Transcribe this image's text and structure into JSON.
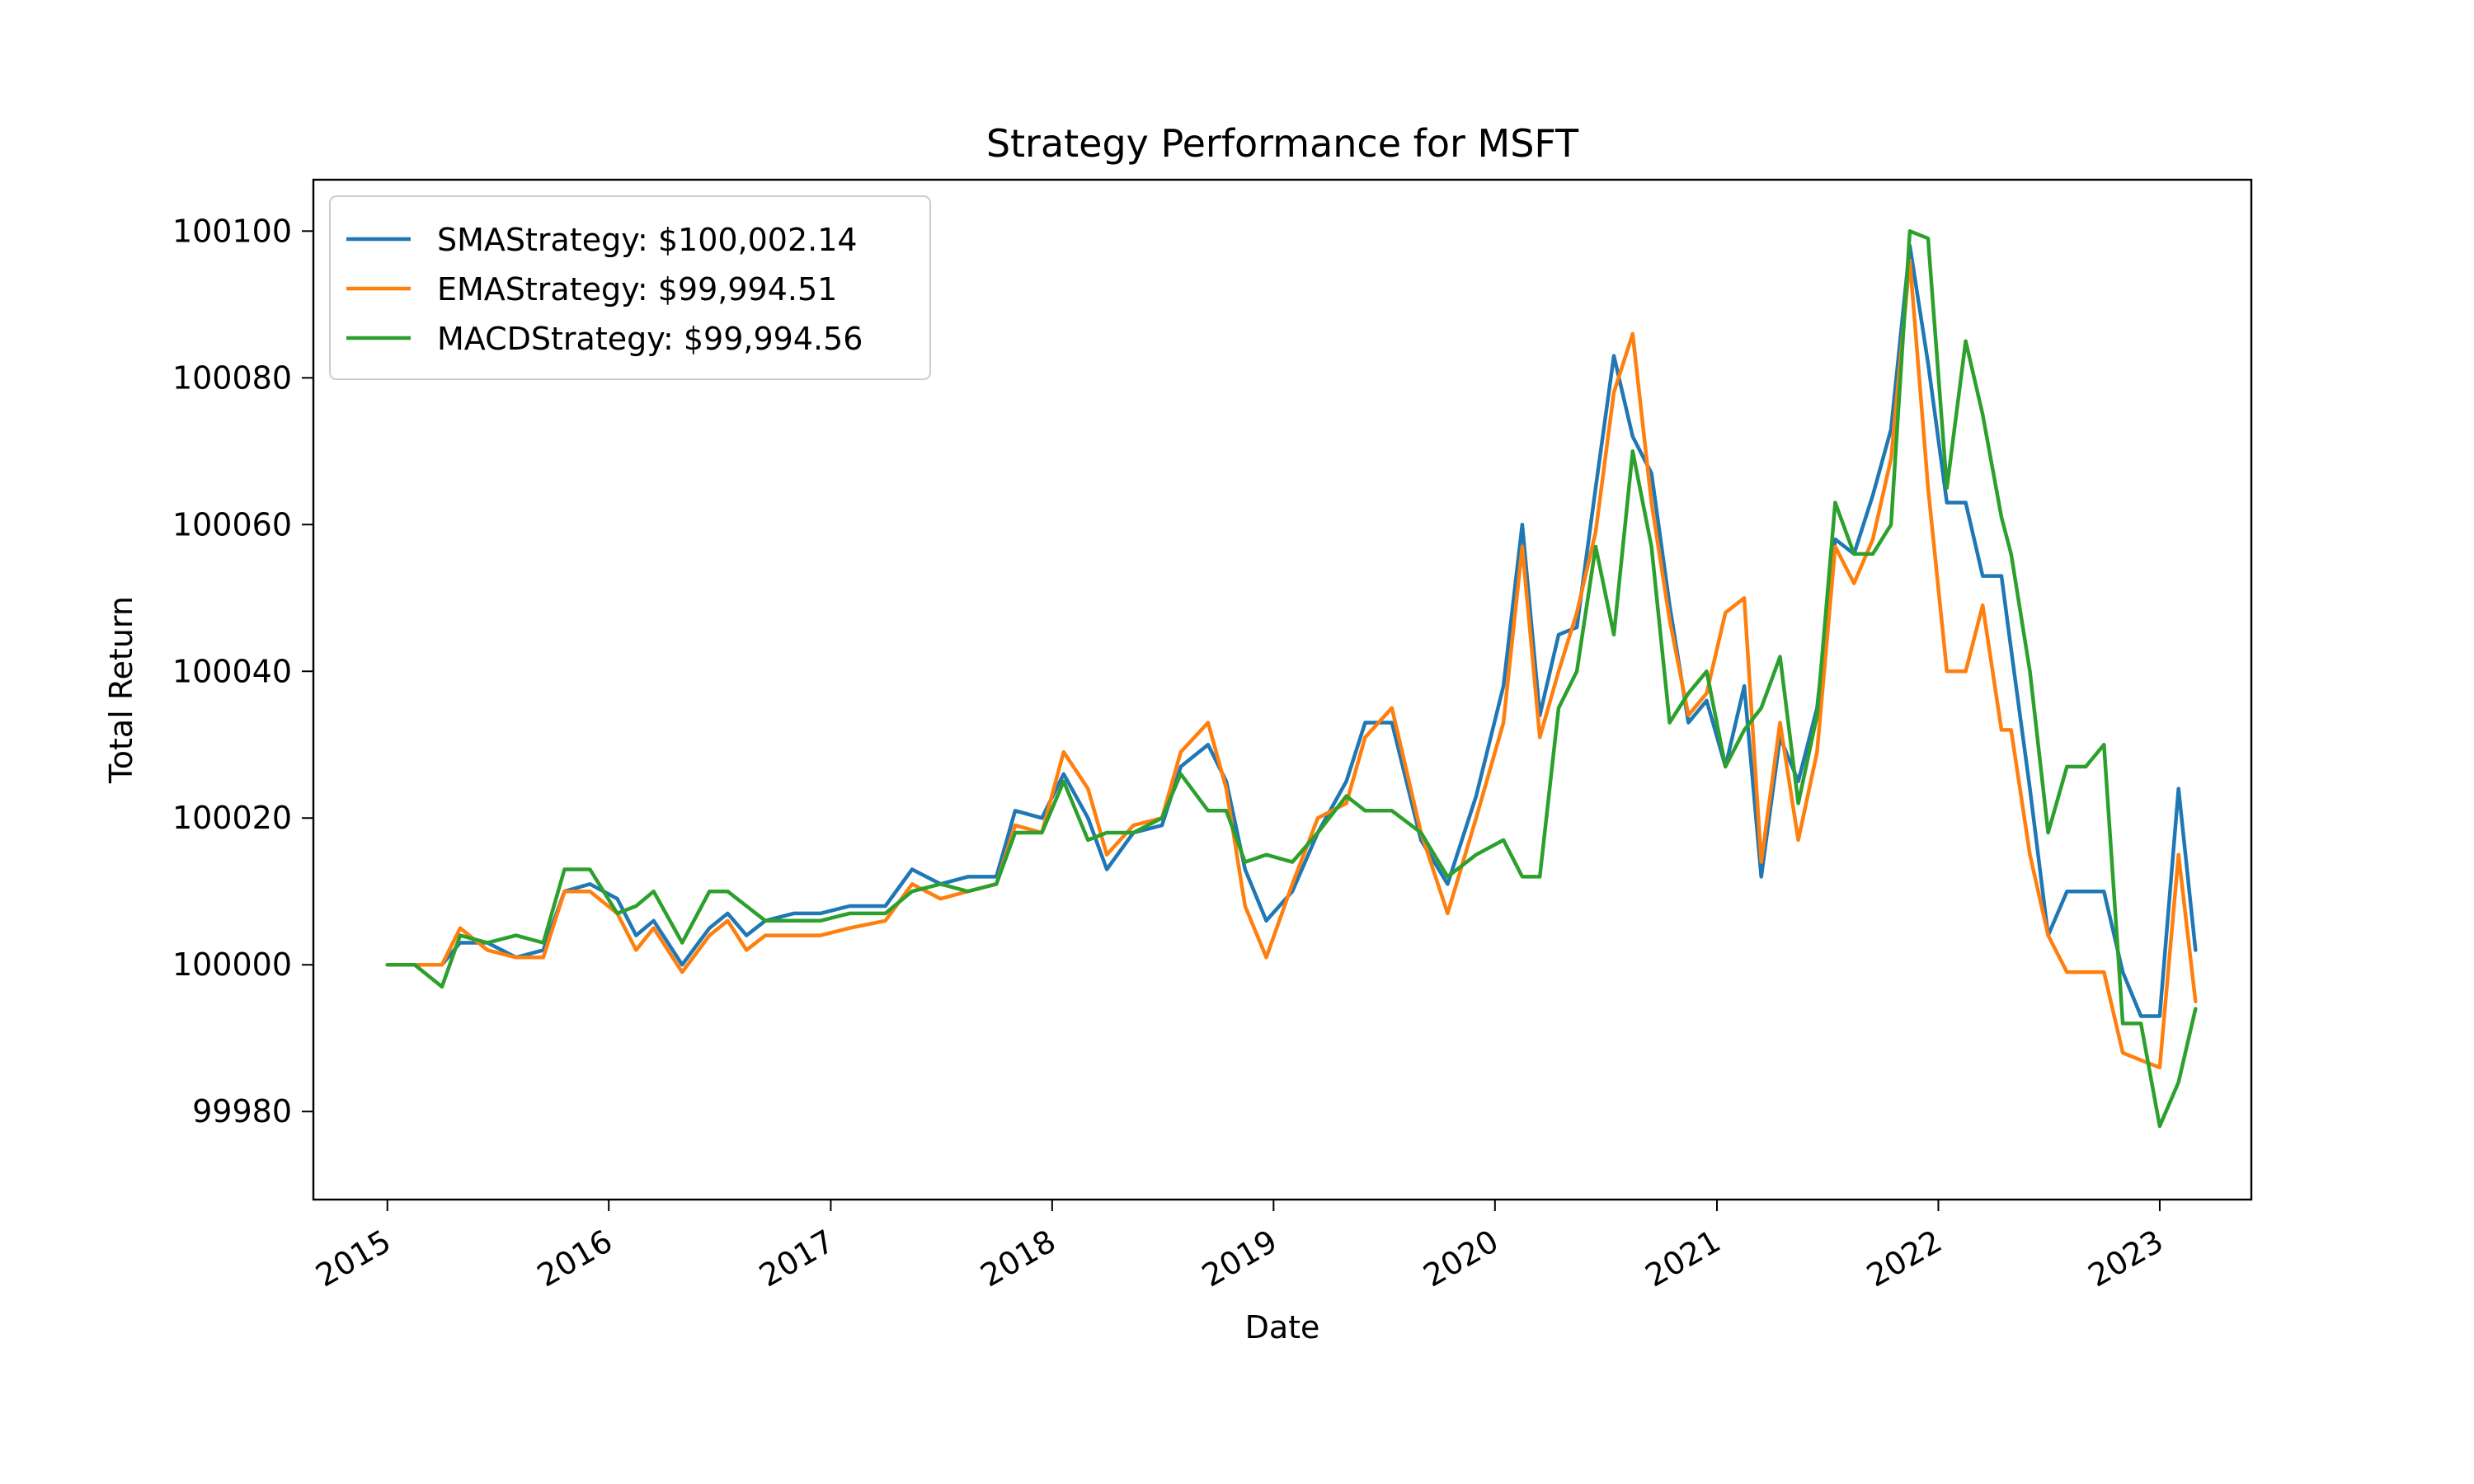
{
  "chart_data": {
    "type": "line",
    "title": "Strategy Performance for MSFT",
    "xlabel": "Date",
    "ylabel": "Total Return",
    "xlim": [
      "2014-09-01",
      "2023-06-01"
    ],
    "ylim": [
      99968,
      100107
    ],
    "x_ticks": [
      "2015",
      "2016",
      "2017",
      "2018",
      "2019",
      "2020",
      "2021",
      "2022",
      "2023"
    ],
    "y_ticks": [
      99980,
      100000,
      100020,
      100040,
      100060,
      100080,
      100100
    ],
    "grid": false,
    "legend_position": "top-left",
    "series": [
      {
        "name": "SMAStrategy: $100,002.14",
        "color": "#1f77b4",
        "points": [
          [
            "2015-01-01",
            100000
          ],
          [
            "2015-02-15",
            100000
          ],
          [
            "2015-04-01",
            100000
          ],
          [
            "2015-05-01",
            100003
          ],
          [
            "2015-06-15",
            100003
          ],
          [
            "2015-08-01",
            100001
          ],
          [
            "2015-09-15",
            100002
          ],
          [
            "2015-10-20",
            100010
          ],
          [
            "2015-12-01",
            100011
          ],
          [
            "2016-01-15",
            100009
          ],
          [
            "2016-02-15",
            100004
          ],
          [
            "2016-03-15",
            100006
          ],
          [
            "2016-05-01",
            100000
          ],
          [
            "2016-06-15",
            100005
          ],
          [
            "2016-07-15",
            100007
          ],
          [
            "2016-08-15",
            100004
          ],
          [
            "2016-09-15",
            100006
          ],
          [
            "2016-11-01",
            100007
          ],
          [
            "2016-12-15",
            100007
          ],
          [
            "2017-02-01",
            100008
          ],
          [
            "2017-04-01",
            100008
          ],
          [
            "2017-05-15",
            100013
          ],
          [
            "2017-07-01",
            100011
          ],
          [
            "2017-08-15",
            100012
          ],
          [
            "2017-10-01",
            100012
          ],
          [
            "2017-11-01",
            100021
          ],
          [
            "2017-12-15",
            100020
          ],
          [
            "2018-01-20",
            100026
          ],
          [
            "2018-03-01",
            100020
          ],
          [
            "2018-04-01",
            100013
          ],
          [
            "2018-05-15",
            100018
          ],
          [
            "2018-07-01",
            100019
          ],
          [
            "2018-08-01",
            100027
          ],
          [
            "2018-09-15",
            100030
          ],
          [
            "2018-10-15",
            100025
          ],
          [
            "2018-11-15",
            100013
          ],
          [
            "2018-12-20",
            100006
          ],
          [
            "2019-02-01",
            100010
          ],
          [
            "2019-03-15",
            100018
          ],
          [
            "2019-05-01",
            100025
          ],
          [
            "2019-06-01",
            100033
          ],
          [
            "2019-07-15",
            100033
          ],
          [
            "2019-09-01",
            100017
          ],
          [
            "2019-10-15",
            100011
          ],
          [
            "2019-12-01",
            100023
          ],
          [
            "2020-01-15",
            100038
          ],
          [
            "2020-02-15",
            100060
          ],
          [
            "2020-03-15",
            100034
          ],
          [
            "2020-04-15",
            100045
          ],
          [
            "2020-05-15",
            100046
          ],
          [
            "2020-06-15",
            100065
          ],
          [
            "2020-07-15",
            100083
          ],
          [
            "2020-08-15",
            100072
          ],
          [
            "2020-09-15",
            100067
          ],
          [
            "2020-10-15",
            100049
          ],
          [
            "2020-11-15",
            100033
          ],
          [
            "2020-12-15",
            100036
          ],
          [
            "2021-01-15",
            100027
          ],
          [
            "2021-02-15",
            100038
          ],
          [
            "2021-03-15",
            100012
          ],
          [
            "2021-04-15",
            100031
          ],
          [
            "2021-05-15",
            100025
          ],
          [
            "2021-06-15",
            100035
          ],
          [
            "2021-07-15",
            100058
          ],
          [
            "2021-08-15",
            100056
          ],
          [
            "2021-09-15",
            100064
          ],
          [
            "2021-10-15",
            100073
          ],
          [
            "2021-11-15",
            100098
          ],
          [
            "2021-12-15",
            100082
          ],
          [
            "2022-01-15",
            100063
          ],
          [
            "2022-02-15",
            100063
          ],
          [
            "2022-03-15",
            100053
          ],
          [
            "2022-04-15",
            100053
          ],
          [
            "2022-05-01",
            100043
          ],
          [
            "2022-06-01",
            100024
          ],
          [
            "2022-07-01",
            100004
          ],
          [
            "2022-08-01",
            100010
          ],
          [
            "2022-09-01",
            100010
          ],
          [
            "2022-10-01",
            100010
          ],
          [
            "2022-11-01",
            99999
          ],
          [
            "2022-12-01",
            99993
          ],
          [
            "2023-01-01",
            99993
          ],
          [
            "2023-02-01",
            100024
          ],
          [
            "2023-03-01",
            100002
          ]
        ]
      },
      {
        "name": "EMAStrategy: $99,994.51",
        "color": "#ff7f0e",
        "points": [
          [
            "2015-01-01",
            100000
          ],
          [
            "2015-02-15",
            100000
          ],
          [
            "2015-04-01",
            100000
          ],
          [
            "2015-05-01",
            100005
          ],
          [
            "2015-06-15",
            100002
          ],
          [
            "2015-08-01",
            100001
          ],
          [
            "2015-09-15",
            100001
          ],
          [
            "2015-10-20",
            100010
          ],
          [
            "2015-12-01",
            100010
          ],
          [
            "2016-01-15",
            100007
          ],
          [
            "2016-02-15",
            100002
          ],
          [
            "2016-03-15",
            100005
          ],
          [
            "2016-05-01",
            99999
          ],
          [
            "2016-06-15",
            100004
          ],
          [
            "2016-07-15",
            100006
          ],
          [
            "2016-08-15",
            100002
          ],
          [
            "2016-09-15",
            100004
          ],
          [
            "2016-11-01",
            100004
          ],
          [
            "2016-12-15",
            100004
          ],
          [
            "2017-02-01",
            100005
          ],
          [
            "2017-04-01",
            100006
          ],
          [
            "2017-05-15",
            100011
          ],
          [
            "2017-07-01",
            100009
          ],
          [
            "2017-08-15",
            100010
          ],
          [
            "2017-10-01",
            100011
          ],
          [
            "2017-11-01",
            100019
          ],
          [
            "2017-12-15",
            100018
          ],
          [
            "2018-01-20",
            100029
          ],
          [
            "2018-03-01",
            100024
          ],
          [
            "2018-04-01",
            100015
          ],
          [
            "2018-05-15",
            100019
          ],
          [
            "2018-07-01",
            100020
          ],
          [
            "2018-08-01",
            100029
          ],
          [
            "2018-09-15",
            100033
          ],
          [
            "2018-10-15",
            100024
          ],
          [
            "2018-11-15",
            100008
          ],
          [
            "2018-12-20",
            100001
          ],
          [
            "2019-02-01",
            100011
          ],
          [
            "2019-03-15",
            100020
          ],
          [
            "2019-05-01",
            100022
          ],
          [
            "2019-06-01",
            100031
          ],
          [
            "2019-07-15",
            100035
          ],
          [
            "2019-09-01",
            100018
          ],
          [
            "2019-10-15",
            100007
          ],
          [
            "2019-12-01",
            100020
          ],
          [
            "2020-01-15",
            100033
          ],
          [
            "2020-02-15",
            100057
          ],
          [
            "2020-03-15",
            100031
          ],
          [
            "2020-04-15",
            100040
          ],
          [
            "2020-05-15",
            100048
          ],
          [
            "2020-06-15",
            100059
          ],
          [
            "2020-07-15",
            100078
          ],
          [
            "2020-08-15",
            100086
          ],
          [
            "2020-09-15",
            100063
          ],
          [
            "2020-10-15",
            100047
          ],
          [
            "2020-11-15",
            100034
          ],
          [
            "2020-12-15",
            100037
          ],
          [
            "2021-01-15",
            100048
          ],
          [
            "2021-02-15",
            100050
          ],
          [
            "2021-03-15",
            100014
          ],
          [
            "2021-04-15",
            100033
          ],
          [
            "2021-05-15",
            100017
          ],
          [
            "2021-06-15",
            100029
          ],
          [
            "2021-07-15",
            100057
          ],
          [
            "2021-08-15",
            100052
          ],
          [
            "2021-09-15",
            100058
          ],
          [
            "2021-10-15",
            100069
          ],
          [
            "2021-11-15",
            100096
          ],
          [
            "2021-12-15",
            100065
          ],
          [
            "2022-01-15",
            100040
          ],
          [
            "2022-02-15",
            100040
          ],
          [
            "2022-03-15",
            100049
          ],
          [
            "2022-04-15",
            100032
          ],
          [
            "2022-05-01",
            100032
          ],
          [
            "2022-06-01",
            100015
          ],
          [
            "2022-07-01",
            100004
          ],
          [
            "2022-08-01",
            99999
          ],
          [
            "2022-09-01",
            99999
          ],
          [
            "2022-10-01",
            99999
          ],
          [
            "2022-11-01",
            99988
          ],
          [
            "2022-12-01",
            99987
          ],
          [
            "2023-01-01",
            99986
          ],
          [
            "2023-02-01",
            100015
          ],
          [
            "2023-03-01",
            99995
          ]
        ]
      },
      {
        "name": "MACDStrategy: $99,994.56",
        "color": "#2ca02c",
        "points": [
          [
            "2015-01-01",
            100000
          ],
          [
            "2015-02-15",
            100000
          ],
          [
            "2015-04-01",
            99997
          ],
          [
            "2015-05-01",
            100004
          ],
          [
            "2015-06-15",
            100003
          ],
          [
            "2015-08-01",
            100004
          ],
          [
            "2015-09-15",
            100003
          ],
          [
            "2015-10-20",
            100013
          ],
          [
            "2015-12-01",
            100013
          ],
          [
            "2016-01-15",
            100007
          ],
          [
            "2016-02-15",
            100008
          ],
          [
            "2016-03-15",
            100010
          ],
          [
            "2016-05-01",
            100003
          ],
          [
            "2016-06-15",
            100010
          ],
          [
            "2016-07-15",
            100010
          ],
          [
            "2016-08-15",
            100008
          ],
          [
            "2016-09-15",
            100006
          ],
          [
            "2016-11-01",
            100006
          ],
          [
            "2016-12-15",
            100006
          ],
          [
            "2017-02-01",
            100007
          ],
          [
            "2017-04-01",
            100007
          ],
          [
            "2017-05-15",
            100010
          ],
          [
            "2017-07-01",
            100011
          ],
          [
            "2017-08-15",
            100010
          ],
          [
            "2017-10-01",
            100011
          ],
          [
            "2017-11-01",
            100018
          ],
          [
            "2017-12-15",
            100018
          ],
          [
            "2018-01-20",
            100025
          ],
          [
            "2018-03-01",
            100017
          ],
          [
            "2018-04-01",
            100018
          ],
          [
            "2018-05-15",
            100018
          ],
          [
            "2018-07-01",
            100020
          ],
          [
            "2018-08-01",
            100026
          ],
          [
            "2018-09-15",
            100021
          ],
          [
            "2018-10-15",
            100021
          ],
          [
            "2018-11-15",
            100014
          ],
          [
            "2018-12-20",
            100015
          ],
          [
            "2019-02-01",
            100014
          ],
          [
            "2019-03-15",
            100018
          ],
          [
            "2019-05-01",
            100023
          ],
          [
            "2019-06-01",
            100021
          ],
          [
            "2019-07-15",
            100021
          ],
          [
            "2019-09-01",
            100018
          ],
          [
            "2019-10-15",
            100012
          ],
          [
            "2019-12-01",
            100015
          ],
          [
            "2020-01-15",
            100017
          ],
          [
            "2020-02-15",
            100012
          ],
          [
            "2020-03-15",
            100012
          ],
          [
            "2020-04-15",
            100035
          ],
          [
            "2020-05-15",
            100040
          ],
          [
            "2020-06-15",
            100057
          ],
          [
            "2020-07-15",
            100045
          ],
          [
            "2020-08-15",
            100070
          ],
          [
            "2020-09-15",
            100057
          ],
          [
            "2020-10-15",
            100033
          ],
          [
            "2020-11-15",
            100037
          ],
          [
            "2020-12-15",
            100040
          ],
          [
            "2021-01-15",
            100027
          ],
          [
            "2021-02-15",
            100032
          ],
          [
            "2021-03-15",
            100035
          ],
          [
            "2021-04-15",
            100042
          ],
          [
            "2021-05-15",
            100022
          ],
          [
            "2021-06-15",
            100034
          ],
          [
            "2021-07-15",
            100063
          ],
          [
            "2021-08-15",
            100056
          ],
          [
            "2021-09-15",
            100056
          ],
          [
            "2021-10-15",
            100060
          ],
          [
            "2021-11-15",
            100100
          ],
          [
            "2021-12-15",
            100099
          ],
          [
            "2022-01-15",
            100065
          ],
          [
            "2022-02-15",
            100085
          ],
          [
            "2022-03-15",
            100075
          ],
          [
            "2022-04-15",
            100061
          ],
          [
            "2022-05-01",
            100056
          ],
          [
            "2022-06-01",
            100040
          ],
          [
            "2022-07-01",
            100018
          ],
          [
            "2022-08-01",
            100027
          ],
          [
            "2022-09-01",
            100027
          ],
          [
            "2022-10-01",
            100030
          ],
          [
            "2022-11-01",
            99992
          ],
          [
            "2022-12-01",
            99992
          ],
          [
            "2023-01-01",
            99978
          ],
          [
            "2023-02-01",
            99984
          ],
          [
            "2023-03-01",
            99994
          ]
        ]
      }
    ]
  }
}
